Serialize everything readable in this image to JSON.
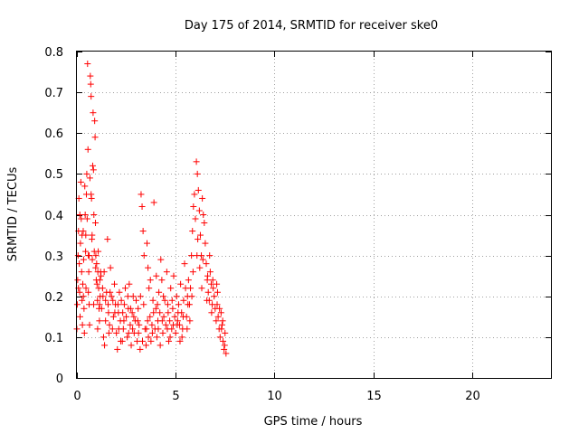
{
  "chart_data": {
    "type": "scatter",
    "title": "Day 175 of 2014, SRMTID for receiver ske0",
    "xlabel": "GPS time / hours",
    "ylabel": "SRMTID / TECUs",
    "xlim": [
      0,
      24
    ],
    "ylim": [
      0,
      0.8
    ],
    "xticks": [
      0,
      5,
      10,
      15,
      20
    ],
    "xtick_labels": [
      "0",
      "5",
      "10",
      "15",
      "20"
    ],
    "yticks": [
      0,
      0.1,
      0.2,
      0.3,
      0.4,
      0.5,
      0.6,
      0.7,
      0.8
    ],
    "ytick_labels": [
      "0",
      "0.1",
      "0.2",
      "0.3",
      "0.4",
      "0.5",
      "0.6",
      "0.7",
      "0.8"
    ],
    "grid": true,
    "marker": "plus",
    "color": "#ff0000",
    "series": [
      {
        "name": "ske0",
        "points": [
          [
            0.0,
            0.12
          ],
          [
            0.02,
            0.18
          ],
          [
            0.04,
            0.24
          ],
          [
            0.06,
            0.3
          ],
          [
            0.08,
            0.36
          ],
          [
            0.1,
            0.44
          ],
          [
            0.12,
            0.28
          ],
          [
            0.14,
            0.21
          ],
          [
            0.16,
            0.15
          ],
          [
            0.18,
            0.33
          ],
          [
            0.2,
            0.48
          ],
          [
            0.22,
            0.39
          ],
          [
            0.24,
            0.26
          ],
          [
            0.26,
            0.19
          ],
          [
            0.28,
            0.13
          ],
          [
            0.3,
            0.23
          ],
          [
            0.32,
            0.36
          ],
          [
            0.34,
            0.29
          ],
          [
            0.36,
            0.17
          ],
          [
            0.38,
            0.11
          ],
          [
            0.4,
            0.47
          ],
          [
            0.42,
            0.4
          ],
          [
            0.44,
            0.31
          ],
          [
            0.46,
            0.22
          ],
          [
            0.48,
            0.45
          ],
          [
            0.5,
            0.5
          ],
          [
            0.52,
            0.39
          ],
          [
            0.54,
            0.77
          ],
          [
            0.56,
            0.56
          ],
          [
            0.58,
            0.3
          ],
          [
            0.6,
            0.26
          ],
          [
            0.62,
            0.18
          ],
          [
            0.64,
            0.13
          ],
          [
            0.66,
            0.49
          ],
          [
            0.68,
            0.74
          ],
          [
            0.7,
            0.72
          ],
          [
            0.72,
            0.69
          ],
          [
            0.74,
            0.44
          ],
          [
            0.76,
            0.34
          ],
          [
            0.78,
            0.29
          ],
          [
            0.8,
            0.52
          ],
          [
            0.82,
            0.65
          ],
          [
            0.84,
            0.51
          ],
          [
            0.86,
            0.4
          ],
          [
            0.88,
            0.31
          ],
          [
            0.9,
            0.63
          ],
          [
            0.92,
            0.59
          ],
          [
            0.94,
            0.38
          ],
          [
            0.96,
            0.3
          ],
          [
            0.98,
            0.24
          ],
          [
            1.0,
            0.28
          ],
          [
            1.02,
            0.23
          ],
          [
            1.04,
            0.19
          ],
          [
            1.06,
            0.26
          ],
          [
            1.08,
            0.31
          ],
          [
            1.1,
            0.22
          ],
          [
            1.12,
            0.17
          ],
          [
            1.14,
            0.14
          ],
          [
            1.16,
            0.24
          ],
          [
            1.18,
            0.2
          ],
          [
            1.2,
            0.26
          ],
          [
            1.25,
            0.17
          ],
          [
            1.3,
            0.22
          ],
          [
            1.35,
            0.1
          ],
          [
            1.4,
            0.08
          ],
          [
            1.45,
            0.19
          ],
          [
            1.5,
            0.21
          ],
          [
            1.55,
            0.34
          ],
          [
            1.6,
            0.16
          ],
          [
            1.65,
            0.13
          ],
          [
            1.7,
            0.27
          ],
          [
            1.75,
            0.2
          ],
          [
            1.8,
            0.12
          ],
          [
            1.85,
            0.15
          ],
          [
            1.9,
            0.23
          ],
          [
            1.95,
            0.18
          ],
          [
            2.0,
            0.11
          ],
          [
            2.05,
            0.07
          ],
          [
            2.1,
            0.16
          ],
          [
            2.15,
            0.21
          ],
          [
            2.2,
            0.14
          ],
          [
            2.25,
            0.19
          ],
          [
            2.3,
            0.09
          ],
          [
            2.35,
            0.12
          ],
          [
            2.4,
            0.18
          ],
          [
            2.45,
            0.22
          ],
          [
            2.5,
            0.15
          ],
          [
            2.55,
            0.1
          ],
          [
            2.6,
            0.17
          ],
          [
            2.65,
            0.23
          ],
          [
            2.7,
            0.13
          ],
          [
            2.75,
            0.08
          ],
          [
            2.8,
            0.16
          ],
          [
            2.85,
            0.2
          ],
          [
            2.9,
            0.11
          ],
          [
            2.95,
            0.14
          ],
          [
            3.0,
            0.19
          ],
          [
            3.05,
            0.09
          ],
          [
            3.1,
            0.17
          ],
          [
            3.15,
            0.13
          ],
          [
            3.2,
            0.07
          ],
          [
            3.25,
            0.45
          ],
          [
            3.3,
            0.42
          ],
          [
            3.35,
            0.36
          ],
          [
            3.4,
            0.3
          ],
          [
            3.45,
            0.12
          ],
          [
            3.5,
            0.08
          ],
          [
            3.55,
            0.33
          ],
          [
            3.6,
            0.27
          ],
          [
            3.65,
            0.22
          ],
          [
            3.7,
            0.15
          ],
          [
            3.75,
            0.09
          ],
          [
            3.8,
            0.13
          ],
          [
            3.85,
            0.19
          ],
          [
            3.9,
            0.43
          ],
          [
            3.95,
            0.12
          ],
          [
            4.0,
            0.17
          ],
          [
            4.05,
            0.1
          ],
          [
            4.1,
            0.14
          ],
          [
            4.15,
            0.21
          ],
          [
            4.2,
            0.16
          ],
          [
            4.25,
            0.29
          ],
          [
            4.3,
            0.24
          ],
          [
            4.35,
            0.11
          ],
          [
            4.4,
            0.15
          ],
          [
            4.45,
            0.19
          ],
          [
            4.5,
            0.13
          ],
          [
            4.55,
            0.26
          ],
          [
            4.6,
            0.18
          ],
          [
            4.65,
            0.09
          ],
          [
            4.7,
            0.14
          ],
          [
            4.75,
            0.22
          ],
          [
            4.8,
            0.12
          ],
          [
            4.85,
            0.17
          ],
          [
            4.9,
            0.25
          ],
          [
            4.95,
            0.15
          ],
          [
            5.0,
            0.11
          ],
          [
            5.05,
            0.2
          ],
          [
            5.1,
            0.14
          ],
          [
            5.15,
            0.18
          ],
          [
            5.2,
            0.13
          ],
          [
            5.25,
            0.23
          ],
          [
            5.3,
            0.16
          ],
          [
            5.35,
            0.12
          ],
          [
            5.4,
            0.19
          ],
          [
            5.45,
            0.28
          ],
          [
            5.5,
            0.22
          ],
          [
            5.55,
            0.15
          ],
          [
            5.6,
            0.2
          ],
          [
            5.65,
            0.24
          ],
          [
            5.7,
            0.18
          ],
          [
            5.75,
            0.22
          ],
          [
            5.8,
            0.3
          ],
          [
            5.85,
            0.36
          ],
          [
            5.9,
            0.42
          ],
          [
            5.95,
            0.45
          ],
          [
            6.0,
            0.39
          ],
          [
            6.05,
            0.53
          ],
          [
            6.1,
            0.5
          ],
          [
            6.15,
            0.46
          ],
          [
            6.2,
            0.41
          ],
          [
            6.25,
            0.35
          ],
          [
            6.3,
            0.3
          ],
          [
            6.35,
            0.44
          ],
          [
            6.4,
            0.4
          ],
          [
            6.45,
            0.38
          ],
          [
            6.5,
            0.33
          ],
          [
            6.55,
            0.28
          ],
          [
            6.6,
            0.24
          ],
          [
            6.65,
            0.21
          ],
          [
            6.7,
            0.19
          ],
          [
            6.75,
            0.26
          ],
          [
            6.8,
            0.23
          ],
          [
            6.85,
            0.18
          ],
          [
            6.9,
            0.22
          ],
          [
            6.95,
            0.2
          ],
          [
            7.0,
            0.17
          ],
          [
            7.05,
            0.14
          ],
          [
            7.1,
            0.18
          ],
          [
            7.15,
            0.15
          ],
          [
            7.2,
            0.12
          ],
          [
            7.25,
            0.1
          ],
          [
            7.3,
            0.16
          ],
          [
            7.35,
            0.13
          ],
          [
            7.4,
            0.09
          ],
          [
            7.45,
            0.07
          ],
          [
            7.5,
            0.11
          ],
          [
            7.55,
            0.06
          ],
          [
            0.15,
            0.4
          ],
          [
            0.45,
            0.35
          ],
          [
            0.72,
            0.45
          ],
          [
            0.95,
            0.27
          ],
          [
            1.15,
            0.18
          ],
          [
            1.22,
            0.25
          ],
          [
            1.45,
            0.14
          ],
          [
            1.68,
            0.21
          ],
          [
            1.92,
            0.16
          ],
          [
            2.12,
            0.12
          ],
          [
            2.38,
            0.14
          ],
          [
            2.62,
            0.11
          ],
          [
            2.88,
            0.15
          ],
          [
            3.12,
            0.11
          ],
          [
            3.38,
            0.18
          ],
          [
            3.62,
            0.1
          ],
          [
            3.88,
            0.16
          ],
          [
            4.12,
            0.12
          ],
          [
            4.38,
            0.2
          ],
          [
            4.62,
            0.16
          ],
          [
            4.88,
            0.13
          ],
          [
            5.12,
            0.16
          ],
          [
            5.38,
            0.15
          ],
          [
            5.62,
            0.18
          ],
          [
            5.88,
            0.26
          ],
          [
            6.12,
            0.34
          ],
          [
            6.38,
            0.29
          ],
          [
            6.62,
            0.25
          ],
          [
            6.88,
            0.24
          ],
          [
            7.12,
            0.21
          ],
          [
            7.38,
            0.14
          ],
          [
            0.08,
            0.22
          ],
          [
            0.33,
            0.2
          ],
          [
            0.58,
            0.21
          ],
          [
            0.85,
            0.18
          ],
          [
            1.32,
            0.2
          ],
          [
            1.58,
            0.18
          ],
          [
            1.82,
            0.19
          ],
          [
            2.08,
            0.18
          ],
          [
            2.32,
            0.16
          ],
          [
            2.58,
            0.2
          ],
          [
            2.82,
            0.12
          ],
          [
            3.08,
            0.14
          ],
          [
            3.32,
            0.09
          ],
          [
            3.58,
            0.14
          ],
          [
            3.82,
            0.11
          ],
          [
            4.08,
            0.18
          ],
          [
            4.32,
            0.14
          ],
          [
            4.58,
            0.12
          ],
          [
            4.82,
            0.19
          ],
          [
            5.08,
            0.13
          ],
          [
            5.32,
            0.1
          ],
          [
            5.58,
            0.12
          ],
          [
            5.82,
            0.2
          ],
          [
            6.08,
            0.3
          ],
          [
            6.32,
            0.22
          ],
          [
            6.58,
            0.19
          ],
          [
            6.82,
            0.16
          ],
          [
            7.08,
            0.23
          ],
          [
            7.32,
            0.12
          ],
          [
            7.48,
            0.08
          ],
          [
            0.26,
            0.35
          ],
          [
            0.62,
            0.3
          ],
          [
            0.77,
            0.35
          ],
          [
            1.05,
            0.12
          ],
          [
            1.38,
            0.26
          ],
          [
            1.62,
            0.11
          ],
          [
            2.22,
            0.09
          ],
          [
            2.72,
            0.17
          ],
          [
            3.22,
            0.2
          ],
          [
            3.72,
            0.24
          ],
          [
            4.22,
            0.08
          ],
          [
            4.72,
            0.1
          ],
          [
            5.22,
            0.09
          ],
          [
            5.72,
            0.14
          ],
          [
            6.22,
            0.27
          ],
          [
            6.72,
            0.3
          ],
          [
            7.22,
            0.17
          ],
          [
            3.52,
            0.12
          ],
          [
            4.02,
            0.25
          ]
        ]
      }
    ]
  }
}
